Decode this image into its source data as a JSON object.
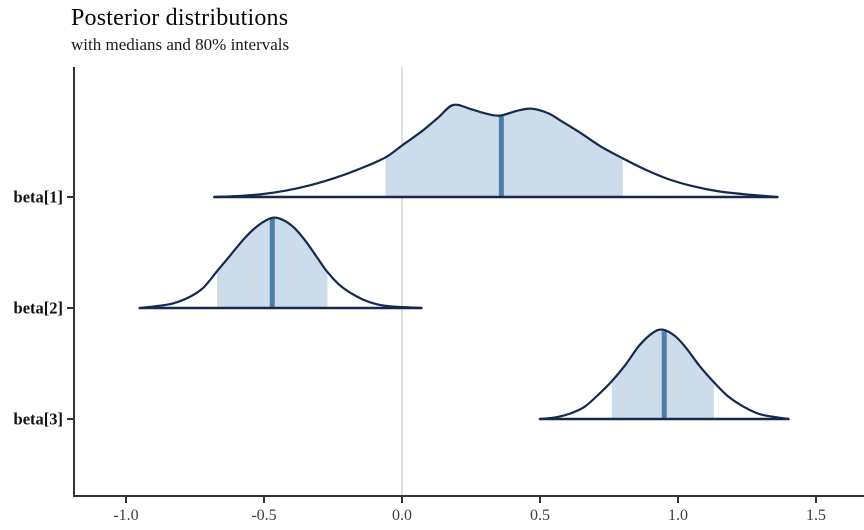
{
  "header": {
    "title": "Posterior distributions",
    "subtitle": "with medians and 80% intervals"
  },
  "colors": {
    "outline": "#15294e",
    "interval_fill": "#cddcea",
    "median_line": "#4d7ea8",
    "zero_line": "#d9d9d9",
    "axis": "#333333",
    "tick_label": "#3d3d3d",
    "row_label": "#111111"
  },
  "chart_data": {
    "type": "area",
    "title": "Posterior distributions",
    "subtitle": "with medians and 80% intervals",
    "xlabel": "",
    "ylabel": "",
    "xlim": [
      -1.19,
      1.67
    ],
    "x_tick_values": [
      -1.0,
      -0.5,
      0.0,
      0.5,
      1.0,
      1.5
    ],
    "x_tick_labels": [
      "-1.0",
      "-0.5",
      "0.0",
      "0.5",
      "1.0",
      "1.5"
    ],
    "y_labels": [
      "beta[1]",
      "beta[2]",
      "beta[3]"
    ],
    "reference_line_x": 0.0,
    "interval_level": 0.8,
    "grid": "off",
    "legend": "none",
    "parameters": [
      {
        "label": "beta[1]",
        "median": 0.36,
        "interval_lower": -0.06,
        "interval_upper": 0.8,
        "range": [
          -0.68,
          1.36
        ],
        "density": [
          [
            -0.68,
            0
          ],
          [
            -0.6,
            0.01
          ],
          [
            -0.51,
            0.03
          ],
          [
            -0.42,
            0.07
          ],
          [
            -0.33,
            0.13
          ],
          [
            -0.24,
            0.21
          ],
          [
            -0.15,
            0.31
          ],
          [
            -0.06,
            0.43
          ],
          [
            0.0,
            0.56
          ],
          [
            0.07,
            0.71
          ],
          [
            0.13,
            0.86
          ],
          [
            0.185,
            1.0
          ],
          [
            0.25,
            0.955
          ],
          [
            0.3,
            0.91
          ],
          [
            0.355,
            0.885
          ],
          [
            0.42,
            0.94
          ],
          [
            0.47,
            0.96
          ],
          [
            0.53,
            0.91
          ],
          [
            0.58,
            0.82
          ],
          [
            0.645,
            0.7
          ],
          [
            0.72,
            0.55
          ],
          [
            0.8,
            0.42
          ],
          [
            0.88,
            0.3
          ],
          [
            0.96,
            0.2
          ],
          [
            1.05,
            0.12
          ],
          [
            1.14,
            0.065
          ],
          [
            1.24,
            0.03
          ],
          [
            1.36,
            0
          ]
        ]
      },
      {
        "label": "beta[2]",
        "median": -0.47,
        "interval_lower": -0.67,
        "interval_upper": -0.27,
        "range": [
          -0.95,
          0.07
        ],
        "density": [
          [
            -0.95,
            0
          ],
          [
            -0.89,
            0.02
          ],
          [
            -0.83,
            0.05
          ],
          [
            -0.77,
            0.12
          ],
          [
            -0.72,
            0.22
          ],
          [
            -0.67,
            0.4
          ],
          [
            -0.62,
            0.58
          ],
          [
            -0.57,
            0.76
          ],
          [
            -0.52,
            0.9
          ],
          [
            -0.47,
            0.98
          ],
          [
            -0.43,
            0.955
          ],
          [
            -0.39,
            0.87
          ],
          [
            -0.35,
            0.73
          ],
          [
            -0.31,
            0.56
          ],
          [
            -0.27,
            0.39
          ],
          [
            -0.23,
            0.26
          ],
          [
            -0.19,
            0.17
          ],
          [
            -0.14,
            0.09
          ],
          [
            -0.09,
            0.04
          ],
          [
            -0.03,
            0.015
          ],
          [
            0.07,
            0
          ]
        ]
      },
      {
        "label": "beta[3]",
        "median": 0.95,
        "interval_lower": 0.76,
        "interval_upper": 1.13,
        "range": [
          0.5,
          1.4
        ],
        "density": [
          [
            0.5,
            0
          ],
          [
            0.56,
            0.02
          ],
          [
            0.61,
            0.06
          ],
          [
            0.66,
            0.13
          ],
          [
            0.71,
            0.26
          ],
          [
            0.76,
            0.41
          ],
          [
            0.81,
            0.59
          ],
          [
            0.86,
            0.8
          ],
          [
            0.91,
            0.94
          ],
          [
            0.946,
            0.97
          ],
          [
            0.99,
            0.9
          ],
          [
            1.03,
            0.77
          ],
          [
            1.08,
            0.57
          ],
          [
            1.13,
            0.4
          ],
          [
            1.18,
            0.25
          ],
          [
            1.24,
            0.13
          ],
          [
            1.3,
            0.05
          ],
          [
            1.4,
            0
          ]
        ]
      }
    ]
  }
}
